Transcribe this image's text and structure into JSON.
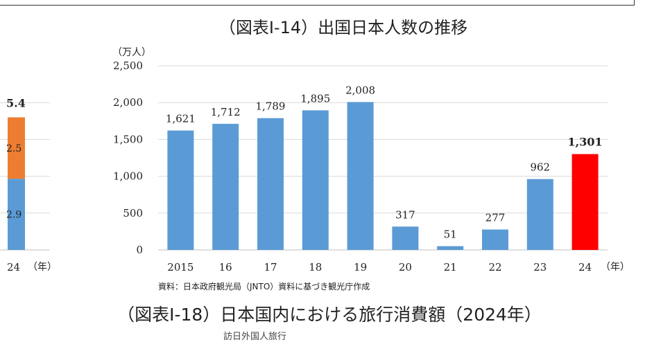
{
  "chart_data": [
    {
      "type": "bar",
      "title": "（図表Ⅰ-14）出国日本人数の推移",
      "unit_label": "（万人）",
      "x_unit_label": "（年）",
      "categories": [
        "2015",
        "16",
        "17",
        "18",
        "19",
        "20",
        "21",
        "22",
        "23",
        "24"
      ],
      "values": [
        1621,
        1712,
        1789,
        1895,
        2008,
        317,
        51,
        277,
        962,
        1301
      ],
      "value_labels": [
        "1,621",
        "1,712",
        "1,789",
        "1,895",
        "2,008",
        "317",
        "51",
        "277",
        "962",
        "1,301"
      ],
      "bar_colors": [
        "#5b9bd5",
        "#5b9bd5",
        "#5b9bd5",
        "#5b9bd5",
        "#5b9bd5",
        "#5b9bd5",
        "#5b9bd5",
        "#5b9bd5",
        "#5b9bd5",
        "#ff0000"
      ],
      "yticks": [
        "0",
        "500",
        "1,000",
        "1,500",
        "2,000",
        "2,500"
      ],
      "ylim": [
        0,
        2500
      ],
      "grid": true,
      "source": "資料：日本政府観光局（JNTO）資料に基づき観光庁作成"
    },
    {
      "type": "bar",
      "stacked": true,
      "partial": true,
      "categories": [
        "24"
      ],
      "x_unit_label": "（年）",
      "total_label": "5.4",
      "series": [
        {
          "values": [
            2.9
          ],
          "value_labels": [
            "2.9"
          ],
          "color": "#5b9bd5"
        },
        {
          "values": [
            2.5
          ],
          "value_labels": [
            "2.5"
          ],
          "color": "#ed7d31"
        }
      ],
      "ylim": [
        0,
        7.5
      ],
      "grid": true
    }
  ],
  "next_title": "（図表Ⅰ-18）日本国内における旅行消費額（2024年）",
  "cut_text": "訪日外国人旅行"
}
